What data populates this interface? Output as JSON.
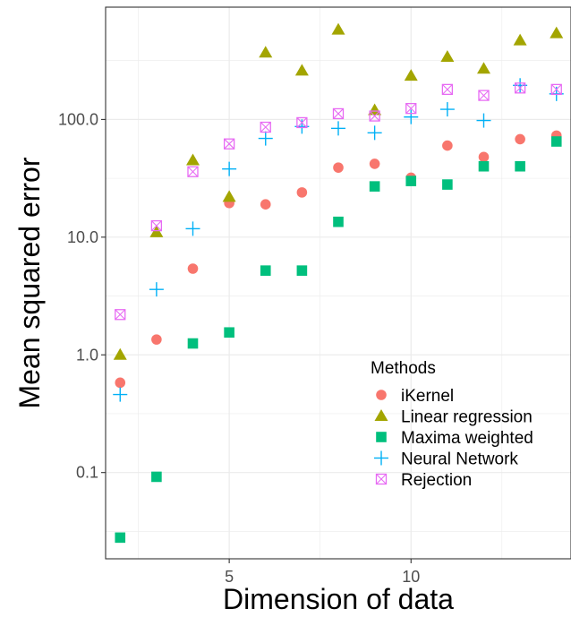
{
  "chart_data": {
    "type": "scatter",
    "title": "",
    "xlabel": "Dimension of data",
    "ylabel": "Mean squared error",
    "x_scale": "linear",
    "y_scale": "log10",
    "xlim": [
      1.6,
      14.4
    ],
    "ylim": [
      0.0185,
      900
    ],
    "x_ticks": [
      5,
      10
    ],
    "x_tick_labels": [
      "5",
      "10"
    ],
    "y_ticks": [
      0.1,
      1,
      10,
      100
    ],
    "y_tick_labels": [
      "0.1",
      "1.0",
      "10.0",
      "100.0"
    ],
    "grid": true,
    "legend": {
      "title": "Methods",
      "position": "inside-bottom-right"
    },
    "x": [
      2,
      3,
      4,
      5,
      6,
      7,
      8,
      9,
      10,
      11,
      12,
      13,
      14
    ],
    "series": [
      {
        "name": "iKernel",
        "marker": "circle",
        "color": "#F8766D",
        "values": [
          0.58,
          1.35,
          5.4,
          19.5,
          19,
          24,
          39,
          42,
          32,
          60,
          48,
          68,
          73
        ]
      },
      {
        "name": "Linear regression",
        "marker": "triangle",
        "color": "#A3A500",
        "values": [
          1.0,
          11,
          45,
          22,
          370,
          260,
          580,
          120,
          235,
          340,
          270,
          470,
          540
        ]
      },
      {
        "name": "Maxima weighted",
        "marker": "square",
        "color": "#00BF7D",
        "values": [
          0.028,
          0.092,
          1.25,
          1.55,
          5.2,
          5.2,
          13.5,
          27,
          30,
          28,
          40,
          40,
          65
        ]
      },
      {
        "name": "Neural Network",
        "marker": "plus",
        "color": "#00B0F6",
        "values": [
          0.46,
          3.6,
          11.8,
          38,
          69,
          87,
          84,
          77,
          105,
          122,
          98,
          195,
          165
        ]
      },
      {
        "name": "Rejection",
        "marker": "square-cross",
        "color": "#E76BF3",
        "values": [
          2.2,
          12.5,
          36,
          62,
          86,
          94,
          112,
          107,
          124,
          180,
          160,
          185,
          180
        ]
      }
    ]
  }
}
